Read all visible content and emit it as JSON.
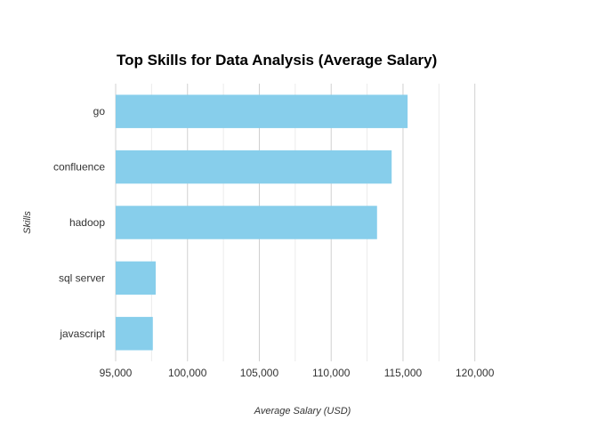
{
  "chart_data": {
    "type": "bar",
    "orientation": "horizontal",
    "title": "Top Skills for Data Analysis (Average Salary)",
    "xlabel": "Average Salary (USD)",
    "ylabel": "Skills",
    "categories": [
      "go",
      "confluence",
      "hadoop",
      "sql server",
      "javascript"
    ],
    "values": [
      115320,
      114210,
      113193,
      97786,
      97587
    ],
    "xlim": [
      95000,
      122000
    ],
    "x_ticks": [
      95000,
      100000,
      105000,
      110000,
      115000,
      120000
    ],
    "x_tick_labels": [
      "95,000",
      "100,000",
      "105,000",
      "110,000",
      "115,000",
      "120,000"
    ],
    "grid": true,
    "legend": "none",
    "bar_color": "#87CEEB"
  }
}
